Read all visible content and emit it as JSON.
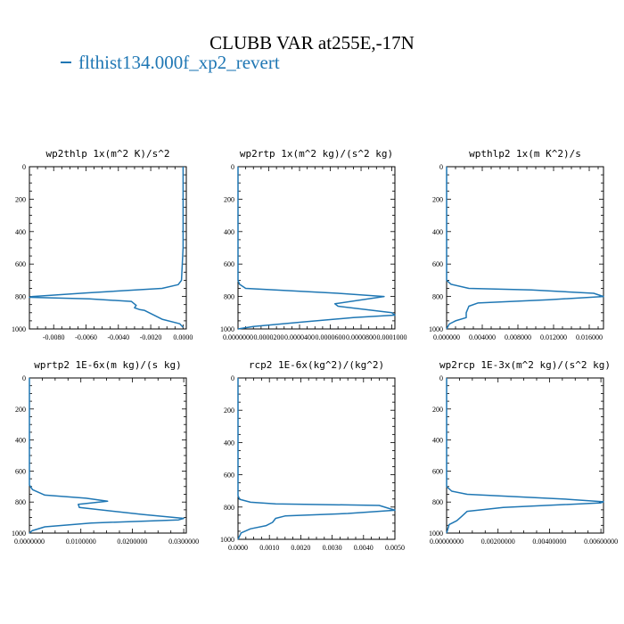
{
  "title": "CLUBB VAR at255E,-17N",
  "legend": {
    "entries": [
      "flthist134.000f_xp2_revert"
    ]
  },
  "colors": {
    "series": "#1f77b4",
    "axes": "#000000"
  },
  "chart_data": [
    {
      "type": "line",
      "title": "wp2thlp  1x(m^2 K)/s^2",
      "xlim": [
        -0.0095,
        0.0002
      ],
      "ylim": [
        1000,
        0
      ],
      "ylabel": "",
      "xlabel": "",
      "yticks": [
        0,
        200,
        400,
        600,
        800,
        1000
      ],
      "yticklabels": [
        "0",
        "200",
        "400",
        "600",
        "800",
        "1000"
      ],
      "xticks": [
        -0.008,
        -0.006,
        -0.004,
        -0.002,
        0.0
      ],
      "xticklabels": [
        "-0.0080",
        "-0.0060",
        "-0.0040",
        "-0.0020",
        "0.0000"
      ],
      "series": [
        {
          "values": [
            [
              0.0,
              0
            ],
            [
              0.0,
              200
            ],
            [
              0.0,
              500
            ],
            [
              -0.0001,
              700
            ],
            [
              -0.0003,
              727
            ],
            [
              -0.0013,
              750
            ],
            [
              -0.006,
              778
            ],
            [
              -0.0093,
              800
            ],
            [
              -0.0095,
              805
            ],
            [
              -0.0058,
              815
            ],
            [
              -0.0032,
              830
            ],
            [
              -0.0029,
              855
            ],
            [
              -0.003,
              870
            ],
            [
              -0.0027,
              880
            ],
            [
              -0.0024,
              885
            ],
            [
              -0.0013,
              940
            ],
            [
              -0.0002,
              968
            ],
            [
              0.0,
              990
            ]
          ]
        }
      ]
    },
    {
      "type": "line",
      "title": "wp2rtp  1x(m^2 kg)/(s^2 kg)",
      "xlim": [
        0.0,
        0.000102
      ],
      "ylim": [
        1000,
        0
      ],
      "ylabel": "",
      "xlabel": "",
      "yticks": [
        0,
        200,
        400,
        600,
        800,
        1000
      ],
      "yticklabels": [
        "0",
        "200",
        "400",
        "600",
        "800",
        "1000"
      ],
      "xticks": [
        0.0,
        2e-05,
        4e-05,
        6e-05,
        8e-05,
        0.0001
      ],
      "xticklabels": [
        "0.0000000",
        "0.0000200",
        "0.0000400",
        "0.0000600",
        "0.0000800",
        "0.0001000"
      ],
      "series": [
        {
          "values": [
            [
              0.0,
              0
            ],
            [
              0.0,
              700
            ],
            [
              1e-06,
              725
            ],
            [
              5e-06,
              750
            ],
            [
              6.5e-05,
              780
            ],
            [
              9.5e-05,
              800
            ],
            [
              6.3e-05,
              845
            ],
            [
              6.5e-05,
              860
            ],
            [
              0.0001,
              900
            ],
            [
              0.000102,
              915
            ],
            [
              7.5e-05,
              930
            ],
            [
              4.5e-05,
              955
            ],
            [
              1e-05,
              985
            ],
            [
              0.0,
              1000
            ]
          ]
        }
      ]
    },
    {
      "type": "line",
      "title": "wpthlp2  1x(m K^2)/s",
      "xlim": [
        0.0,
        0.0176
      ],
      "ylim": [
        1000,
        0
      ],
      "ylabel": "",
      "xlabel": "",
      "yticks": [
        0,
        200,
        400,
        600,
        800,
        1000
      ],
      "yticklabels": [
        "0",
        "200",
        "400",
        "600",
        "800",
        "1000"
      ],
      "xticks": [
        0.0,
        0.004,
        0.008,
        0.012,
        0.016
      ],
      "xticklabels": [
        "0.000000",
        "0.004000",
        "0.008000",
        "0.012000",
        "0.016000"
      ],
      "series": [
        {
          "values": [
            [
              0.0,
              0
            ],
            [
              0.0,
              700
            ],
            [
              0.0005,
              725
            ],
            [
              0.0025,
              750
            ],
            [
              0.0095,
              760
            ],
            [
              0.0165,
              780
            ],
            [
              0.0176,
              800
            ],
            [
              0.0115,
              820
            ],
            [
              0.0035,
              840
            ],
            [
              0.0025,
              860
            ],
            [
              0.0022,
              900
            ],
            [
              0.0022,
              930
            ],
            [
              0.001,
              950
            ],
            [
              0.0003,
              970
            ],
            [
              0.0,
              1000
            ]
          ]
        }
      ]
    },
    {
      "type": "line",
      "title": "wprtp2  1E-6x(m kg)/(s kg)",
      "xlim": [
        0.0,
        0.0305
      ],
      "ylim": [
        1000,
        0
      ],
      "ylabel": "",
      "xlabel": "",
      "yticks": [
        0,
        200,
        400,
        600,
        800,
        1000
      ],
      "yticklabels": [
        "0",
        "200",
        "400",
        "600",
        "800",
        "1000"
      ],
      "xticks": [
        0.0,
        0.01,
        0.02,
        0.03
      ],
      "xticklabels": [
        "0.0000000",
        "0.0100000",
        "0.0200000",
        "0.0300000"
      ],
      "series": [
        {
          "values": [
            [
              0.0,
              0
            ],
            [
              0.0,
              690
            ],
            [
              0.0006,
              720
            ],
            [
              0.003,
              755
            ],
            [
              0.011,
              775
            ],
            [
              0.0152,
              795
            ],
            [
              0.0095,
              815
            ],
            [
              0.0097,
              835
            ],
            [
              0.022,
              880
            ],
            [
              0.03,
              905
            ],
            [
              0.029,
              915
            ],
            [
              0.012,
              935
            ],
            [
              0.003,
              960
            ],
            [
              0.0005,
              985
            ],
            [
              0.0,
              1000
            ]
          ]
        }
      ]
    },
    {
      "type": "line",
      "title": "rcp2  1E-6x(kg^2)/(kg^2)",
      "xlim": [
        0.0,
        0.005
      ],
      "ylim": [
        1000,
        0
      ],
      "ylabel": "",
      "xlabel": "",
      "yticks": [
        0,
        200,
        400,
        600,
        800,
        1000
      ],
      "yticklabels": [
        "0",
        "200",
        "400",
        "600",
        "800",
        "1000"
      ],
      "xticks": [
        0.0,
        0.001,
        0.002,
        0.003,
        0.004,
        0.005
      ],
      "xticklabels": [
        "0.0000",
        "0.0010",
        "0.0020",
        "0.0030",
        "0.0040",
        "0.0050"
      ],
      "series": [
        {
          "values": [
            [
              0.0,
              0
            ],
            [
              0.0,
              730
            ],
            [
              5e-05,
              752
            ],
            [
              0.0004,
              770
            ],
            [
              0.0012,
              780
            ],
            [
              0.0045,
              790
            ],
            [
              0.005,
              820
            ],
            [
              0.0035,
              840
            ],
            [
              0.0015,
              855
            ],
            [
              0.0012,
              870
            ],
            [
              0.0011,
              895
            ],
            [
              0.0009,
              915
            ],
            [
              0.0004,
              935
            ],
            [
              0.0001,
              960
            ],
            [
              0.0,
              1000
            ]
          ]
        }
      ]
    },
    {
      "type": "line",
      "title": "wp2rcp  1E-3x(m^2 kg)/(s^2 kg)",
      "xlim": [
        0.0,
        0.0061
      ],
      "ylim": [
        1000,
        0
      ],
      "ylabel": "",
      "xlabel": "",
      "yticks": [
        0,
        200,
        400,
        600,
        800,
        1000
      ],
      "yticklabels": [
        "0",
        "200",
        "400",
        "600",
        "800",
        "1000"
      ],
      "xticks": [
        0.0,
        0.002,
        0.004,
        0.006
      ],
      "xticklabels": [
        "0.00000000",
        "0.00200000",
        "0.00400000",
        "0.00600000"
      ],
      "series": [
        {
          "values": [
            [
              0.0,
              0
            ],
            [
              0.0,
              700
            ],
            [
              0.0002,
              730
            ],
            [
              0.0008,
              750
            ],
            [
              0.0045,
              780
            ],
            [
              0.0061,
              798
            ],
            [
              0.006,
              805
            ],
            [
              0.0022,
              835
            ],
            [
              0.0008,
              860
            ],
            [
              0.0006,
              890
            ],
            [
              0.0004,
              920
            ],
            [
              0.0001,
              945
            ],
            [
              0.0,
              1000
            ]
          ]
        }
      ]
    }
  ]
}
